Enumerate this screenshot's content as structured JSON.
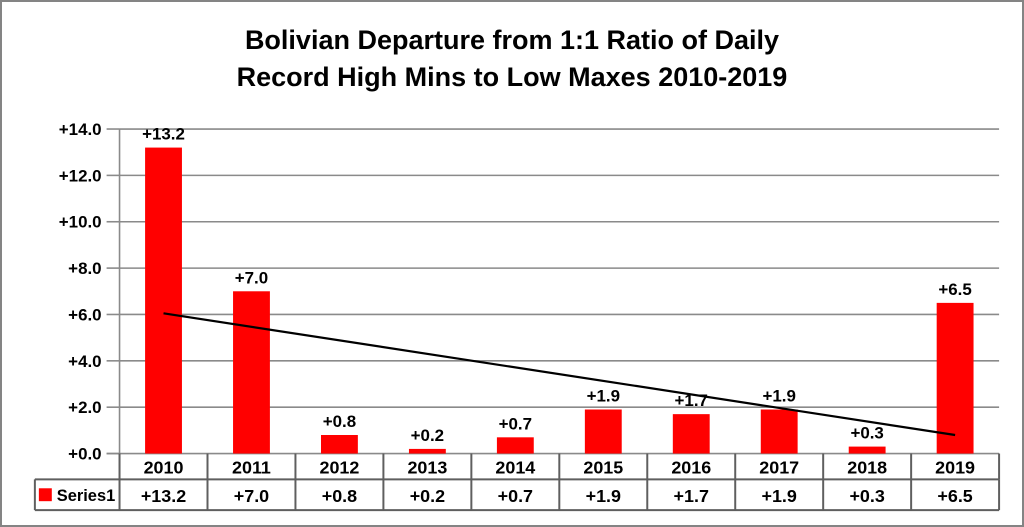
{
  "title": {
    "line1": "Bolivian Departure from 1:1 Ratio of Daily",
    "line2": "Record High Mins to Low Maxes 2010-2019"
  },
  "chart_data": {
    "type": "bar",
    "title": "Bolivian Departure from 1:1 Ratio of Daily Record High Mins to Low Maxes 2010-2019",
    "categories": [
      "2010",
      "2011",
      "2012",
      "2013",
      "2014",
      "2015",
      "2016",
      "2017",
      "2018",
      "2019"
    ],
    "series": [
      {
        "name": "Series1",
        "values": [
          13.2,
          7.0,
          0.8,
          0.2,
          0.7,
          1.9,
          1.7,
          1.9,
          0.3,
          6.5
        ]
      }
    ],
    "bar_labels": [
      "+13.2",
      "+7.0",
      "+0.8",
      "+0.2",
      "+0.7",
      "+1.9",
      "+1.7",
      "+1.9",
      "+0.3",
      "+6.5"
    ],
    "xlabel": "",
    "ylabel": "",
    "ylim": [
      0,
      14
    ],
    "y_tick_step": 2,
    "y_tick_labels": [
      "+0.0",
      "+2.0",
      "+4.0",
      "+6.0",
      "+8.0",
      "+10.0",
      "+12.0",
      "+14.0"
    ],
    "grid": true,
    "legend_position": "bottom-table",
    "trendline": {
      "type": "linear",
      "y_start": 6.05,
      "y_end": 0.8
    },
    "data_table": {
      "legend_label": "Series1",
      "header_row": [
        "2010",
        "2011",
        "2012",
        "2013",
        "2014",
        "2015",
        "2016",
        "2017",
        "2018",
        "2019"
      ],
      "value_row": [
        "+13.2",
        "+7.0",
        "+0.8",
        "+0.2",
        "+0.7",
        "+1.9",
        "+1.7",
        "+1.9",
        "+0.3",
        "+6.5"
      ]
    }
  },
  "colors": {
    "bar": "#FF0000",
    "gridline": "#8A8A8A",
    "axis": "#8A8A8A",
    "table_border": "#5F5F5F",
    "frame": "#848484",
    "trendline": "#000000",
    "background": "#FFFFFF",
    "text": "#000000"
  }
}
